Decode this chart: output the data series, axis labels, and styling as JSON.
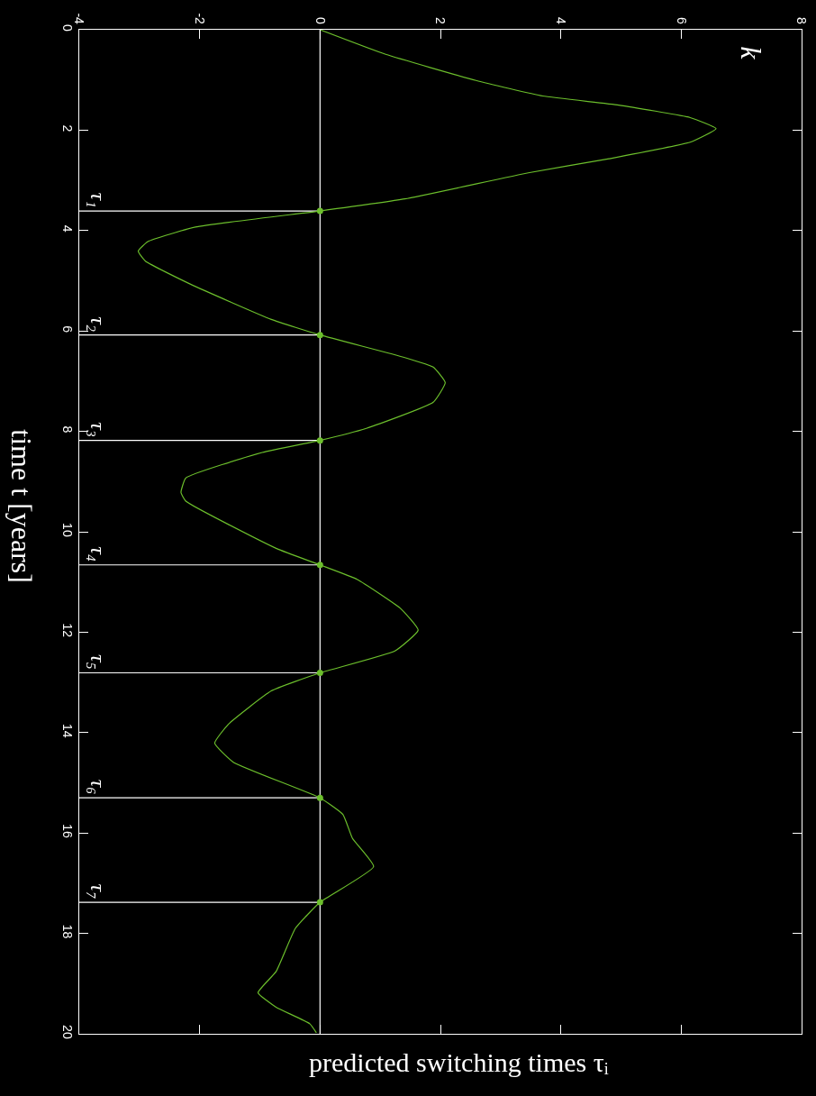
{
  "chart_data": {
    "type": "line",
    "ylabel": "time t [years]",
    "annotations": [
      "predicted switching times τᵢ",
      "k"
    ],
    "xlim": [
      -4,
      8
    ],
    "xticks": [
      -4,
      -2,
      0,
      2,
      4,
      6,
      8
    ],
    "ylim": [
      20,
      0
    ],
    "yticks": [
      0,
      2,
      4,
      6,
      8,
      10,
      12,
      14,
      16,
      18,
      20
    ],
    "grid": false,
    "marker": "none",
    "line_style": "solid",
    "series": [
      {
        "color": "#6cbf2c",
        "x": [
          0,
          1.09,
          2.59,
          3.7,
          4.96,
          6.15,
          6.58,
          6.15,
          4.8,
          3.46,
          1.41,
          0,
          -2.07,
          -2.86,
          -3.02,
          -2.9,
          -2.15,
          -0.81,
          0,
          1.41,
          1.88,
          2.08,
          1.88,
          0.77,
          0,
          -0.96,
          -2.23,
          -2.31,
          -2.23,
          -0.73,
          0,
          0.62,
          1.33,
          1.63,
          1.25,
          0,
          -0.81,
          -1.52,
          -1.75,
          -1.44,
          0,
          0.38,
          0.54,
          0.89,
          0,
          -0.41,
          -0.73,
          -1.03,
          -0.73,
          -0.17,
          -0.06
        ],
        "values": [
          0,
          0.49,
          1.01,
          1.32,
          1.5,
          1.75,
          1.97,
          2.24,
          2.57,
          2.85,
          3.37,
          3.61,
          3.93,
          4.22,
          4.41,
          4.61,
          5.07,
          5.77,
          6.08,
          6.53,
          6.72,
          7.03,
          7.42,
          7.94,
          8.18,
          8.42,
          8.93,
          9.22,
          9.39,
          10.33,
          10.66,
          10.95,
          11.52,
          11.96,
          12.37,
          12.81,
          13.17,
          13.83,
          14.21,
          14.59,
          15.3,
          15.63,
          16.11,
          16.67,
          17.38,
          17.9,
          18.76,
          19.18,
          19.47,
          19.8,
          19.98
        ]
      },
      {
        "type": "scatter",
        "color": "#6cbf2c",
        "x": [
          0,
          0,
          0,
          0,
          0,
          0,
          0
        ],
        "values": [
          3.61,
          6.08,
          8.18,
          10.66,
          12.81,
          15.3,
          17.38
        ]
      }
    ],
    "ref_lines": [
      {
        "axis": "x",
        "value": 0,
        "color": "#ffffff"
      },
      {
        "axis": "y",
        "value": 3.61,
        "label": "τ₁",
        "color": "#ffffff"
      },
      {
        "axis": "y",
        "value": 6.08,
        "label": "τ₂",
        "color": "#ffffff"
      },
      {
        "axis": "y",
        "value": 8.18,
        "label": "τ₃",
        "color": "#ffffff"
      },
      {
        "axis": "y",
        "value": 10.66,
        "label": "τ₄",
        "color": "#ffffff"
      },
      {
        "axis": "y",
        "value": 12.81,
        "label": "τ₅",
        "color": "#ffffff"
      },
      {
        "axis": "y",
        "value": 15.3,
        "label": "τ₆",
        "color": "#ffffff"
      },
      {
        "axis": "y",
        "value": 17.38,
        "label": "τ₇",
        "color": "#ffffff"
      }
    ]
  }
}
